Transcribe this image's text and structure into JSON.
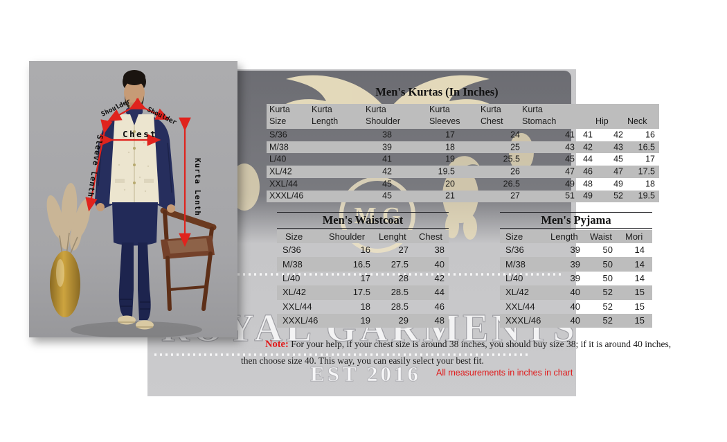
{
  "watermark": {
    "brand": "ROYAL GARMENTS",
    "est": "EST 2016",
    "monogram": "M G"
  },
  "photo": {
    "annotations": {
      "shoulder_left": "Shoulder",
      "shoulder_right": "Shoulder",
      "chest": "Chest",
      "sleeve_length": "Sleeve Lenth",
      "kurta_length": "Kurta Lenth"
    }
  },
  "kurtas": {
    "title": "Men's Kurtas (In Inches)",
    "headers": [
      [
        "Kurta",
        "Size"
      ],
      [
        "Kurta",
        "Length"
      ],
      [
        "Kurta",
        "Shoulder"
      ],
      [
        "Kurta",
        "Sleeves"
      ],
      [
        "Kurta",
        "Chest"
      ],
      [
        "Kurta",
        "Stomach"
      ],
      [
        "",
        "Hip"
      ],
      [
        "",
        "Neck"
      ]
    ],
    "rows": [
      [
        "S/36",
        "38",
        "17",
        "24",
        "41",
        "41",
        "42",
        "16"
      ],
      [
        "M/38",
        "39",
        "18",
        "25",
        "43",
        "42",
        "43",
        "16.5"
      ],
      [
        "L/40",
        "41",
        "19",
        "25.5",
        "45",
        "44",
        "45",
        "17"
      ],
      [
        "XL/42",
        "42",
        "19.5",
        "26",
        "47",
        "46",
        "47",
        "17.5"
      ],
      [
        "XXL/44",
        "45",
        "20",
        "26.5",
        "49",
        "48",
        "49",
        "18"
      ],
      [
        "XXXL/46",
        "45",
        "21",
        "27",
        "51",
        "49",
        "52",
        "19.5"
      ]
    ]
  },
  "waistcoat": {
    "title": "Men's Waistcoat",
    "headers": [
      "Size",
      "Shoulder",
      "Lenght",
      "Chest"
    ],
    "rows": [
      [
        "S/36",
        "16",
        "27",
        "38"
      ],
      [
        "M/38",
        "16.5",
        "27.5",
        "40"
      ],
      [
        "L/40",
        "17",
        "28",
        "42"
      ],
      [
        "XL/42",
        "17.5",
        "28.5",
        "44"
      ],
      [
        "XXL/44",
        "18",
        "28.5",
        "46"
      ],
      [
        "XXXL/46",
        "19",
        "29",
        "48"
      ]
    ]
  },
  "pyjama": {
    "title": "Men's Pyjama",
    "headers": [
      "Size",
      "Length",
      "Waist",
      "Mori"
    ],
    "rows": [
      [
        "S/36",
        "39",
        "50",
        "14"
      ],
      [
        "M/38",
        "39",
        "50",
        "14"
      ],
      [
        "L/40",
        "39",
        "50",
        "14"
      ],
      [
        "XL/42",
        "40",
        "52",
        "15"
      ],
      [
        "XXL/44",
        "40",
        "52",
        "15"
      ],
      [
        "XXXL/46",
        "40",
        "52",
        "15"
      ]
    ]
  },
  "note": {
    "label": "Note:",
    "line1": " For your help, if your chest size is around 38 inches, you should buy size 38; if it is around 40 inches,",
    "line2": "then choose size 40. This way, you can easily select your best fit.",
    "units": "All measurements in inches in chart"
  },
  "colors": {
    "accent_red": "#e0231d",
    "note_red": "#e01818",
    "band_gray": "#bdbdbd",
    "panel_gray": "#c7c7c9"
  }
}
